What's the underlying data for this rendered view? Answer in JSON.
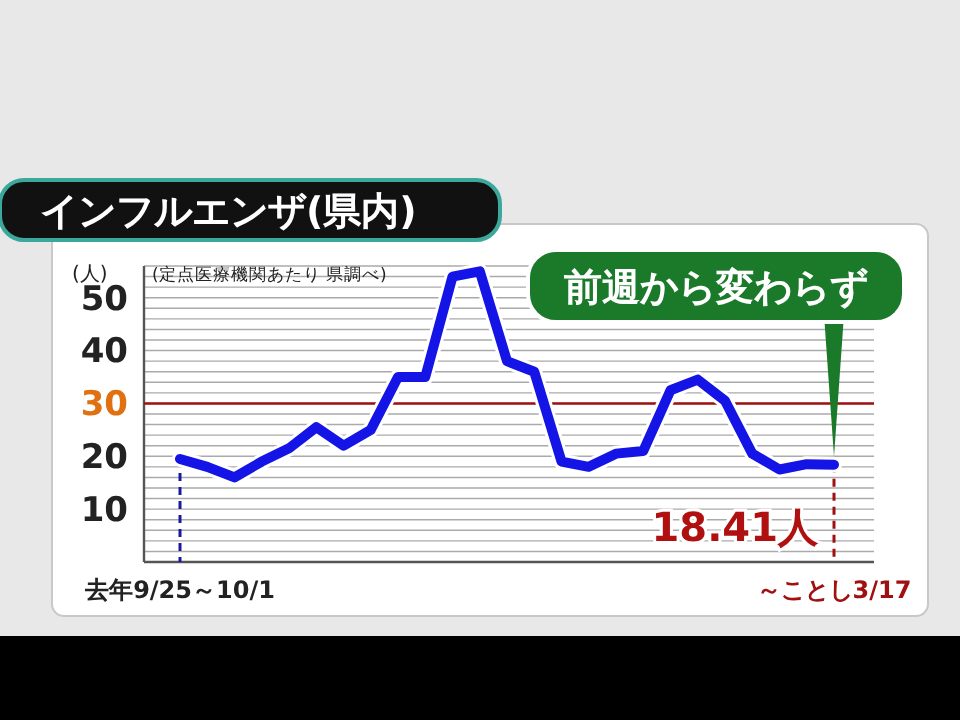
{
  "chart_data": {
    "type": "line",
    "title": "インフルエンザ(県内)",
    "ylabel": "(人)",
    "categories": [
      "去年9/25～10/1",
      null,
      null,
      null,
      null,
      null,
      null,
      null,
      null,
      null,
      null,
      null,
      null,
      null,
      null,
      null,
      null,
      null,
      null,
      null,
      null,
      null,
      null,
      null,
      "～ことし3/17"
    ],
    "series": [
      {
        "color": "#1414e6",
        "values": [
          19.5,
          18,
          16,
          19,
          21.5,
          25.5,
          22,
          25,
          35,
          35,
          54,
          55,
          38,
          36,
          19,
          18,
          20.5,
          21,
          32.5,
          34.5,
          30.5,
          20.5,
          17.5,
          18.5,
          18.41
        ],
        "value_labels": [
          null,
          null,
          null,
          null,
          null,
          null,
          null,
          null,
          null,
          null,
          null,
          null,
          null,
          null,
          null,
          null,
          null,
          null,
          null,
          null,
          null,
          null,
          null,
          null,
          "18.41人"
        ]
      }
    ],
    "ylim": [
      0,
      56
    ],
    "yticks": [
      {
        "value": 2,
        "label": null
      },
      {
        "value": 4,
        "label": null
      },
      {
        "value": 6,
        "label": null
      },
      {
        "value": 8,
        "label": null
      },
      10,
      {
        "value": 12,
        "label": null
      },
      {
        "value": 14,
        "label": null
      },
      {
        "value": 16,
        "label": null
      },
      {
        "value": 18,
        "label": null
      },
      20,
      {
        "value": 22,
        "label": null
      },
      {
        "value": 24,
        "label": null
      },
      {
        "value": 26,
        "label": null
      },
      {
        "value": 28,
        "label": null
      },
      30,
      {
        "value": 32,
        "label": null
      },
      {
        "value": 34,
        "label": null
      },
      {
        "value": 36,
        "label": null
      },
      {
        "value": 38,
        "label": null
      },
      40,
      {
        "value": 42,
        "label": null
      },
      {
        "value": 44,
        "label": null
      },
      {
        "value": 46,
        "label": null
      },
      {
        "value": 48,
        "label": null
      },
      50,
      {
        "value": 52,
        "label": null
      },
      {
        "value": 54,
        "label": null
      },
      {
        "value": 56,
        "label": null
      }
    ],
    "grid": "y",
    "line_style": "solid",
    "marker": "none",
    "ref_lines": [
      {
        "axis": "y",
        "value": 30,
        "color": "#a01010",
        "line_style": "solid"
      },
      {
        "axis": "x",
        "value": "去年9/25～10/1",
        "color": "#1a1aa0",
        "line_style": "dashed"
      },
      {
        "axis": "x",
        "value": "～ことし3/17",
        "color": "#a01010",
        "line_style": "dashed"
      }
    ],
    "annotations": [
      "(定点医療機関あたり 県調べ)",
      {
        "text": "前週から変わらず",
        "x": "～ことし3/17",
        "y": 18.41
      }
    ]
  }
}
